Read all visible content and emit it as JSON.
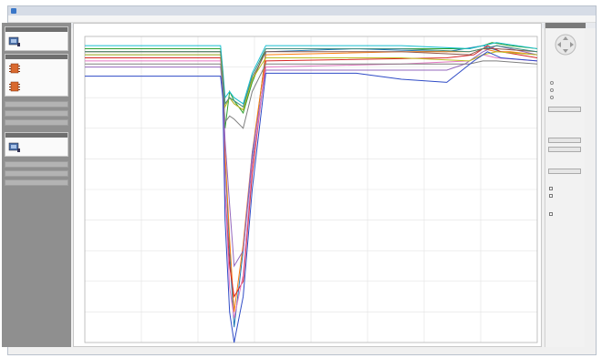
{
  "window": {
    "title": ""
  },
  "menu": [],
  "sidebar": {
    "cards": [
      {
        "label": "",
        "icon": "device-icon"
      },
      {
        "label": "",
        "icon": "chip-icon"
      },
      {
        "label": "",
        "icon": "chip-icon"
      },
      {
        "label": "",
        "icon": "device-icon"
      }
    ],
    "bands": [
      "",
      "",
      "",
      "",
      "",
      "",
      ""
    ]
  },
  "plot": {
    "title": ""
  },
  "chart_data": {
    "type": "line",
    "title": "",
    "xlabel": "",
    "ylabel": "",
    "x_range": [
      0,
      100
    ],
    "y_range": [
      0,
      100
    ],
    "grid": true,
    "series": [
      {
        "color": "#1f77b4",
        "x": [
          0,
          30,
          30.5,
          31,
          32,
          33,
          35,
          37,
          40,
          60,
          80,
          84,
          88,
          90,
          92,
          100
        ],
        "y": [
          94,
          94,
          85,
          60,
          30,
          5,
          30,
          60,
          95,
          96,
          95,
          96,
          97,
          96,
          95,
          94
        ]
      },
      {
        "color": "#ff7f0e",
        "x": [
          0,
          30,
          30.5,
          31,
          32,
          33,
          35,
          37,
          40,
          70,
          85,
          88,
          91,
          94,
          100
        ],
        "y": [
          95,
          95,
          86,
          62,
          34,
          10,
          32,
          62,
          94,
          95,
          95,
          96,
          95,
          95,
          94
        ]
      },
      {
        "color": "#2ca02c",
        "x": [
          0,
          30,
          30.5,
          31,
          32,
          33,
          35,
          37,
          40,
          75,
          85,
          88,
          90,
          94,
          100
        ],
        "y": [
          96,
          96,
          88,
          70,
          82,
          79,
          75,
          85,
          96,
          96,
          96,
          97,
          98,
          97,
          96
        ]
      },
      {
        "color": "#d62728",
        "x": [
          0,
          30,
          30.5,
          31,
          32,
          33,
          35,
          37,
          40,
          80,
          86,
          89,
          92,
          100
        ],
        "y": [
          93,
          93,
          84,
          50,
          25,
          15,
          20,
          55,
          92,
          93,
          94,
          97,
          95,
          93
        ]
      },
      {
        "color": "#9467bd",
        "x": [
          0,
          30,
          30.5,
          31,
          32,
          33,
          35,
          37,
          40,
          80,
          84,
          88,
          91,
          94,
          100
        ],
        "y": [
          90,
          90,
          82,
          66,
          45,
          25,
          30,
          62,
          89,
          89,
          91,
          95,
          97,
          96,
          94
        ]
      },
      {
        "color": "#8c564b",
        "x": [
          0,
          30,
          30.5,
          31,
          32,
          33,
          35,
          37,
          40,
          70,
          85,
          88,
          91,
          100
        ],
        "y": [
          95,
          95,
          87,
          78,
          80,
          78,
          76,
          86,
          95,
          95,
          94,
          96,
          96,
          95
        ]
      },
      {
        "color": "#e377c2",
        "x": [
          0,
          30,
          30.5,
          31,
          32,
          33,
          35,
          37,
          40,
          70,
          85,
          88,
          91,
          100
        ],
        "y": [
          92,
          92,
          84,
          50,
          18,
          8,
          22,
          58,
          90,
          91,
          92,
          94,
          93,
          92
        ]
      },
      {
        "color": "#17becf",
        "x": [
          0,
          30,
          30.5,
          31,
          32,
          33,
          35,
          37,
          40,
          70,
          85,
          88,
          91,
          100
        ],
        "y": [
          97,
          97,
          89,
          80,
          82,
          80,
          78,
          88,
          97,
          97,
          96,
          97,
          98,
          96
        ]
      },
      {
        "color": "#bcbd22",
        "x": [
          0,
          30,
          30.5,
          31,
          32,
          33,
          35,
          37,
          40,
          70,
          85,
          88,
          91,
          100
        ],
        "y": [
          94,
          94,
          86,
          77,
          80,
          78,
          76,
          86,
          93,
          93,
          92,
          94,
          95,
          94
        ]
      },
      {
        "color": "#7f7f7f",
        "x": [
          0,
          30,
          30.5,
          31,
          32,
          33,
          35,
          37,
          40,
          70,
          85,
          88,
          91,
          100
        ],
        "y": [
          91,
          91,
          84,
          72,
          74,
          73,
          70,
          82,
          91,
          91,
          91,
          92,
          92,
          91
        ]
      },
      {
        "color": "#2f4bc6",
        "x": [
          0,
          30,
          30.5,
          31,
          32,
          33,
          35,
          37,
          40,
          60,
          70,
          80,
          86,
          89,
          92,
          100
        ],
        "y": [
          87,
          87,
          80,
          40,
          10,
          0,
          15,
          50,
          88,
          88,
          86,
          85,
          92,
          95,
          93,
          92
        ]
      },
      {
        "color": "#3e8e7e",
        "x": [
          0,
          30,
          30.5,
          31,
          32,
          33,
          35,
          37,
          40,
          70,
          85,
          88,
          91,
          100
        ],
        "y": [
          95,
          95,
          88,
          78,
          80,
          79,
          77,
          87,
          96,
          96,
          95,
          96,
          97,
          95
        ]
      }
    ]
  },
  "rpanel": {
    "texts": [
      "",
      "",
      "",
      "",
      "",
      "",
      "",
      "",
      "",
      "",
      ""
    ],
    "buttons": [
      "",
      "",
      "",
      ""
    ]
  },
  "colors": {
    "sidebar": "#8f8f8f",
    "grid": "#e3e3e3",
    "accent": "#3a77c8"
  }
}
